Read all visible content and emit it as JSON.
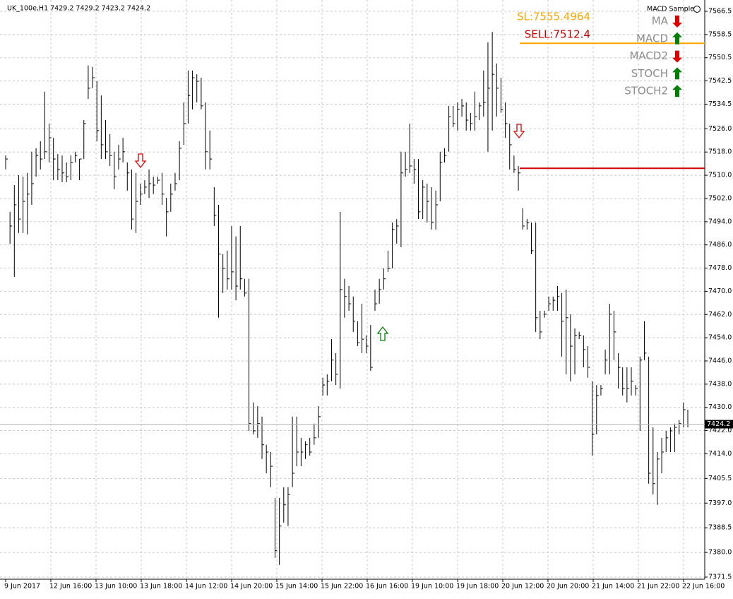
{
  "chart_data": {
    "type": "hlc",
    "header": "UK_100e,H1  7429.2 7429.2 7423.2 7424.2",
    "panel_title": "MACD Sample",
    "ylim": [
      7371.5,
      7566.5
    ],
    "yticks": [
      {
        "value": 7566.5,
        "label": "7566.5"
      },
      {
        "value": 7558.5,
        "label": "7558.5"
      },
      {
        "value": 7550.5,
        "label": "7550.5"
      },
      {
        "value": 7542.5,
        "label": "7542.5"
      },
      {
        "value": 7534.5,
        "label": "7534.5"
      },
      {
        "value": 7526,
        "label": "7526.0"
      },
      {
        "value": 7518,
        "label": "7518.0"
      },
      {
        "value": 7510,
        "label": "7510.0"
      },
      {
        "value": 7502,
        "label": "7502.0"
      },
      {
        "value": 7494,
        "label": "7494.0"
      },
      {
        "value": 7486,
        "label": "7486.0"
      },
      {
        "value": 7478,
        "label": "7478.0"
      },
      {
        "value": 7470,
        "label": "7470.0"
      },
      {
        "value": 7462,
        "label": "7462.0"
      },
      {
        "value": 7454,
        "label": "7454.0"
      },
      {
        "value": 7446,
        "label": "7446.0"
      },
      {
        "value": 7438,
        "label": "7438.0"
      },
      {
        "value": 7430,
        "label": "7430.0"
      },
      {
        "value": 7422,
        "label": "7422.0"
      },
      {
        "value": 7414,
        "label": "7414.0"
      },
      {
        "value": 7405.5,
        "label": "7405.5"
      },
      {
        "value": 7397,
        "label": "7397.0"
      },
      {
        "value": 7388.5,
        "label": "7388.5"
      },
      {
        "value": 7380,
        "label": "7380.0"
      },
      {
        "value": 7371.5,
        "label": "7371.5"
      }
    ],
    "xticks": [
      "9 Jun 2017",
      "12 Jun 16:00",
      "13 Jun 10:00",
      "13 Jun 18:00",
      "14 Jun 12:00",
      "14 Jun 20:00",
      "15 Jun 14:00",
      "15 Jun 22:00",
      "16 Jun 16:00",
      "19 Jun 10:00",
      "19 Jun 18:00",
      "20 Jun 12:00",
      "20 Jun 20:00",
      "21 Jun 14:00",
      "21 Jun 22:00",
      "22 Jun 16:00"
    ],
    "grid": true,
    "color": "#000000",
    "last_price": 7424.2,
    "levels": [
      {
        "label": "SL:7555.4964",
        "value": 7555.4964,
        "color": "#ffa500"
      },
      {
        "label": "SELL:7512.4",
        "value": 7512.4,
        "color": "#cc0000"
      }
    ],
    "signals": [
      {
        "name": "MA",
        "direction": "down"
      },
      {
        "name": "MACD",
        "direction": "up"
      },
      {
        "name": "MACD2",
        "direction": "down"
      },
      {
        "name": "STOCH",
        "direction": "up"
      },
      {
        "name": "STOCH2",
        "direction": "up"
      }
    ],
    "high": [
      7516.8,
      7497.4,
      7506.6,
      7510.0,
      7509.5,
      7510.8,
      7518.1,
      7519.3,
      7521.7,
      7538.8,
      7527.8,
      7522.9,
      7517.3,
      7516.8,
      7514.4,
      7516.8,
      7518.1,
      7515.6,
      7529.0,
      7547.8,
      7547.3,
      7542.4,
      7537.5,
      7529.0,
      7524.2,
      7518.1,
      7520.5,
      7522.9,
      7514.4,
      7512.0,
      7510.8,
      7507.1,
      7508.3,
      7512.0,
      7509.5,
      7509.5,
      7510.8,
      7502.2,
      7507.1,
      7510.8,
      7521.7,
      7535.1,
      7546.1,
      7546.1,
      7544.8,
      7543.6,
      7535.1,
      7525.4,
      7505.9,
      7499.8,
      7482.8,
      7484.0,
      7492.5,
      7488.9,
      7492.5,
      7474.3,
      7474.3,
      7431.7,
      7430.4,
      7426.8,
      7417.1,
      7414.6,
      7398.8,
      7398.8,
      7402.5,
      7402.5,
      7426.8,
      7426.8,
      7419.5,
      7418.3,
      7419.5,
      7424.4,
      7430.4,
      7440.2,
      7441.4,
      7453.5,
      7448.7,
      7497.4,
      7474.3,
      7471.8,
      7468.2,
      7459.7,
      7465.7,
      7454.8,
      7458.4,
      7470.6,
      7474.3,
      7477.9,
      7484.0,
      7493.7,
      7494.9,
      7518.1,
      7518.1,
      7527.8,
      7515.6,
      7515.6,
      7508.3,
      7507.1,
      7505.9,
      7504.7,
      7518.1,
      7519.3,
      7533.9,
      7533.9,
      7535.1,
      7536.3,
      7535.1,
      7531.5,
      7538.8,
      7535.1,
      7546.1,
      7555.8,
      7559.4,
      7548.5,
      7543.6,
      7535.1,
      7527.8,
      7516.8,
      7513.2,
      7498.6,
      7494.9,
      7493.7,
      7493.7,
      7463.3,
      7463.3,
      7468.2,
      7468.2,
      7471.8,
      7469.4,
      7470.6,
      7462.1,
      7457.2,
      7456.0,
      7454.8,
      7451.1,
      7439.0,
      7437.7,
      7437.7,
      7449.9,
      7465.7,
      7463.3,
      7448.7,
      7443.8,
      7443.8,
      7443.8,
      7437.7,
      7447.5,
      7459.7,
      7447.5,
      7423.1,
      7414.6,
      7419.5,
      7421.9,
      7423.1,
      7424.4,
      7425.6,
      7431.7,
      7429.2
    ],
    "low": [
      7512.0,
      7486.4,
      7475.0,
      7490.1,
      7490.1,
      7489.6,
      7499.8,
      7509.5,
      7512.0,
      7515.6,
      7514.4,
      7508.3,
      7508.3,
      7507.6,
      7507.6,
      7508.3,
      7514.4,
      7508.3,
      7515.6,
      7536.3,
      7540.0,
      7521.7,
      7515.6,
      7515.6,
      7513.2,
      7505.2,
      7512.0,
      7514.4,
      7504.7,
      7491.3,
      7490.1,
      7499.8,
      7503.5,
      7502.2,
      7503.5,
      7507.1,
      7499.8,
      7488.9,
      7497.4,
      7504.7,
      7508.3,
      7520.5,
      7527.8,
      7532.7,
      7535.1,
      7532.7,
      7512.0,
      7512.0,
      7492.5,
      7460.9,
      7469.4,
      7470.6,
      7470.6,
      7466.9,
      7470.6,
      7468.2,
      7421.9,
      7420.7,
      7419.5,
      7412.2,
      7407.3,
      7402.5,
      7378.1,
      7375.7,
      7390.3,
      7389.1,
      7402.5,
      7409.7,
      7409.7,
      7412.2,
      7413.4,
      7417.1,
      7419.5,
      7434.1,
      7434.1,
      7439.0,
      7437.7,
      7436.5,
      7460.9,
      7463.3,
      7456.0,
      7451.1,
      7448.7,
      7448.7,
      7442.6,
      7463.3,
      7465.7,
      7470.6,
      7476.7,
      7477.9,
      7486.4,
      7485.2,
      7509.5,
      7510.8,
      7507.1,
      7494.9,
      7494.9,
      7493.7,
      7491.3,
      7491.3,
      7501.0,
      7514.4,
      7518.1,
      7526.6,
      7525.4,
      7530.2,
      7525.4,
      7525.4,
      7525.4,
      7529.0,
      7530.2,
      7518.1,
      7525.4,
      7530.2,
      7531.5,
      7522.9,
      7512.0,
      7510.8,
      7504.7,
      7491.3,
      7491.3,
      7482.8,
      7456.0,
      7453.5,
      7460.9,
      7463.3,
      7463.3,
      7463.3,
      7447.5,
      7441.4,
      7439.0,
      7441.4,
      7453.5,
      7443.8,
      7440.2,
      7413.4,
      7420.7,
      7434.1,
      7441.4,
      7441.4,
      7446.3,
      7436.5,
      7434.1,
      7431.7,
      7434.1,
      7434.1,
      7421.9,
      7446.3,
      7403.7,
      7400.0,
      7396.4,
      7407.3,
      7414.6,
      7414.6,
      7414.6,
      7420.7,
      7423.1,
      7423.1
    ],
    "close": [
      7515.6,
      7492.5,
      7499.8,
      7494.9,
      7501.0,
      7503.5,
      7507.1,
      7516.8,
      7515.6,
      7518.1,
      7522.9,
      7515.6,
      7512.0,
      7510.8,
      7509.5,
      7514.4,
      7516.8,
      7515.6,
      7527.8,
      7540.0,
      7543.6,
      7525.4,
      7520.5,
      7518.1,
      7516.8,
      7509.5,
      7515.6,
      7518.1,
      7510.8,
      7494.9,
      7501.0,
      7503.5,
      7505.9,
      7507.1,
      7506.6,
      7508.3,
      7503.5,
      7497.4,
      7503.5,
      7507.1,
      7519.3,
      7527.8,
      7537.5,
      7543.6,
      7542.4,
      7533.9,
      7518.1,
      7515.6,
      7496.2,
      7482.8,
      7477.9,
      7474.3,
      7476.7,
      7471.8,
      7474.3,
      7469.4,
      7424.4,
      7421.9,
      7424.4,
      7417.1,
      7414.6,
      7409.7,
      7380.6,
      7389.1,
      7396.4,
      7400.0,
      7407.3,
      7414.6,
      7414.6,
      7417.1,
      7414.6,
      7419.5,
      7426.8,
      7437.7,
      7439.0,
      7446.3,
      7441.4,
      7470.6,
      7468.2,
      7465.7,
      7459.7,
      7452.3,
      7453.5,
      7451.1,
      7443.8,
      7465.7,
      7470.6,
      7474.3,
      7477.9,
      7491.3,
      7492.5,
      7510.8,
      7512.0,
      7513.2,
      7512.0,
      7497.4,
      7505.9,
      7501.0,
      7493.7,
      7499.8,
      7514.4,
      7516.8,
      7530.2,
      7527.8,
      7532.7,
      7533.9,
      7529.0,
      7527.8,
      7530.2,
      7533.9,
      7535.1,
      7540.0,
      7544.8,
      7540.0,
      7532.7,
      7527.8,
      7520.5,
      7512.0,
      7510.8,
      7492.5,
      7493.7,
      7484.0,
      7460.9,
      7456.0,
      7462.1,
      7465.7,
      7466.9,
      7468.2,
      7459.7,
      7460.9,
      7451.1,
      7454.8,
      7454.8,
      7449.9,
      7443.8,
      7420.7,
      7434.1,
      7436.5,
      7446.3,
      7462.1,
      7456.0,
      7443.8,
      7436.5,
      7436.5,
      7439.0,
      7436.5,
      7446.3,
      7448.7,
      7407.3,
      7403.7,
      7412.2,
      7414.6,
      7419.5,
      7421.9,
      7423.1,
      7424.4,
      7429.2,
      7424.2
    ]
  }
}
